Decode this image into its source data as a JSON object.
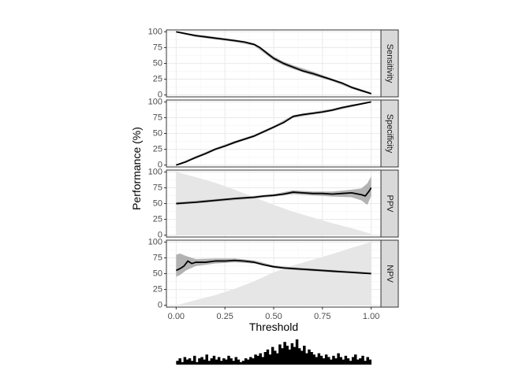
{
  "chart_data": {
    "type": "line",
    "xlabel": "Threshold",
    "ylabel": "Performance (%)",
    "xlim": [
      -0.05,
      1.05
    ],
    "ylim": [
      -3,
      103
    ],
    "x_ticks": [
      0,
      0.25,
      0.5,
      0.75,
      1
    ],
    "x_tick_labels": [
      "0.00",
      "0.25",
      "0.50",
      "0.75",
      "1.00"
    ],
    "y_ticks": [
      0,
      25,
      50,
      75,
      100
    ],
    "y_tick_labels": [
      "0",
      "25",
      "50",
      "75",
      "100"
    ],
    "grid": true,
    "colors": {
      "panel_bg": "#ffffff",
      "grid_major": "#ebebeb",
      "grid_minor": "#f5f5f5",
      "border": "#333333",
      "strip_bg": "#d9d9d9",
      "line": "#000000",
      "ci_band": "#999999",
      "area_fill": "#e6e6e6"
    },
    "panels": [
      {
        "name": "Sensitivity",
        "line": [
          [
            0,
            100
          ],
          [
            0.05,
            97
          ],
          [
            0.1,
            94
          ],
          [
            0.15,
            92
          ],
          [
            0.2,
            90
          ],
          [
            0.25,
            88
          ],
          [
            0.3,
            86
          ],
          [
            0.35,
            84
          ],
          [
            0.4,
            80
          ],
          [
            0.43,
            75
          ],
          [
            0.47,
            65
          ],
          [
            0.5,
            58
          ],
          [
            0.55,
            50
          ],
          [
            0.6,
            44
          ],
          [
            0.65,
            38
          ],
          [
            0.7,
            34
          ],
          [
            0.75,
            29
          ],
          [
            0.8,
            24
          ],
          [
            0.85,
            19
          ],
          [
            0.9,
            12
          ],
          [
            0.95,
            7
          ],
          [
            1,
            2
          ]
        ],
        "ci_lower": [
          [
            0,
            99
          ],
          [
            0.1,
            92
          ],
          [
            0.2,
            88
          ],
          [
            0.3,
            84
          ],
          [
            0.4,
            78
          ],
          [
            0.47,
            62
          ],
          [
            0.5,
            55
          ],
          [
            0.55,
            47
          ],
          [
            0.6,
            41
          ],
          [
            0.7,
            31
          ],
          [
            0.8,
            22
          ],
          [
            0.9,
            10
          ],
          [
            0.95,
            5
          ],
          [
            1,
            1
          ]
        ],
        "ci_upper": [
          [
            0,
            100
          ],
          [
            0.1,
            96
          ],
          [
            0.2,
            92
          ],
          [
            0.3,
            88
          ],
          [
            0.4,
            82
          ],
          [
            0.47,
            68
          ],
          [
            0.5,
            61
          ],
          [
            0.55,
            53
          ],
          [
            0.6,
            47
          ],
          [
            0.7,
            37
          ],
          [
            0.8,
            26
          ],
          [
            0.9,
            14
          ],
          [
            0.95,
            9
          ],
          [
            1,
            4
          ]
        ]
      },
      {
        "name": "Specificity",
        "line": [
          [
            0,
            0
          ],
          [
            0.05,
            5
          ],
          [
            0.1,
            12
          ],
          [
            0.15,
            18
          ],
          [
            0.2,
            25
          ],
          [
            0.25,
            30
          ],
          [
            0.3,
            36
          ],
          [
            0.35,
            41
          ],
          [
            0.4,
            46
          ],
          [
            0.45,
            53
          ],
          [
            0.5,
            60
          ],
          [
            0.55,
            67
          ],
          [
            0.6,
            77
          ],
          [
            0.65,
            80
          ],
          [
            0.7,
            82
          ],
          [
            0.75,
            84
          ],
          [
            0.8,
            87
          ],
          [
            0.85,
            91
          ],
          [
            0.9,
            94
          ],
          [
            0.95,
            97
          ],
          [
            1,
            100
          ]
        ],
        "ci_lower": [
          [
            0,
            0
          ],
          [
            0.1,
            10
          ],
          [
            0.2,
            23
          ],
          [
            0.3,
            34
          ],
          [
            0.4,
            44
          ],
          [
            0.5,
            58
          ],
          [
            0.6,
            75
          ],
          [
            0.7,
            80
          ],
          [
            0.8,
            85
          ],
          [
            0.9,
            92
          ],
          [
            1,
            99
          ]
        ],
        "ci_upper": [
          [
            0,
            1
          ],
          [
            0.1,
            14
          ],
          [
            0.2,
            27
          ],
          [
            0.3,
            38
          ],
          [
            0.4,
            48
          ],
          [
            0.5,
            62
          ],
          [
            0.6,
            79
          ],
          [
            0.7,
            84
          ],
          [
            0.8,
            89
          ],
          [
            0.9,
            96
          ],
          [
            1,
            100
          ]
        ]
      },
      {
        "name": "PPV",
        "area": [
          [
            0,
            100
          ],
          [
            0.1,
            92
          ],
          [
            0.2,
            83
          ],
          [
            0.3,
            72
          ],
          [
            0.4,
            60
          ],
          [
            0.5,
            48
          ],
          [
            0.6,
            37
          ],
          [
            0.7,
            28
          ],
          [
            0.8,
            19
          ],
          [
            0.9,
            11
          ],
          [
            1,
            2
          ]
        ],
        "line": [
          [
            0,
            50
          ],
          [
            0.1,
            52
          ],
          [
            0.2,
            55
          ],
          [
            0.3,
            58
          ],
          [
            0.4,
            60
          ],
          [
            0.45,
            62
          ],
          [
            0.5,
            63
          ],
          [
            0.55,
            65
          ],
          [
            0.6,
            68
          ],
          [
            0.65,
            67
          ],
          [
            0.7,
            66
          ],
          [
            0.75,
            66
          ],
          [
            0.8,
            65
          ],
          [
            0.85,
            66
          ],
          [
            0.9,
            67
          ],
          [
            0.95,
            64
          ],
          [
            0.97,
            62
          ],
          [
            0.99,
            70
          ],
          [
            1,
            75
          ]
        ],
        "ci_lower": [
          [
            0,
            48
          ],
          [
            0.2,
            53
          ],
          [
            0.4,
            58
          ],
          [
            0.5,
            61
          ],
          [
            0.6,
            65
          ],
          [
            0.7,
            63
          ],
          [
            0.8,
            61
          ],
          [
            0.9,
            60
          ],
          [
            0.95,
            55
          ],
          [
            0.98,
            48
          ],
          [
            1,
            62
          ]
        ],
        "ci_upper": [
          [
            0,
            52
          ],
          [
            0.2,
            57
          ],
          [
            0.4,
            62
          ],
          [
            0.5,
            65
          ],
          [
            0.6,
            71
          ],
          [
            0.7,
            69
          ],
          [
            0.8,
            69
          ],
          [
            0.9,
            72
          ],
          [
            0.95,
            74
          ],
          [
            0.98,
            82
          ],
          [
            1,
            93
          ]
        ]
      },
      {
        "name": "NPV",
        "area": [
          [
            0,
            0
          ],
          [
            0.1,
            8
          ],
          [
            0.2,
            16
          ],
          [
            0.3,
            26
          ],
          [
            0.4,
            38
          ],
          [
            0.5,
            52
          ],
          [
            0.6,
            63
          ],
          [
            0.7,
            72
          ],
          [
            0.8,
            81
          ],
          [
            0.9,
            91
          ],
          [
            1,
            100
          ]
        ],
        "line": [
          [
            0,
            55
          ],
          [
            0.02,
            58
          ],
          [
            0.04,
            62
          ],
          [
            0.06,
            70
          ],
          [
            0.08,
            66
          ],
          [
            0.1,
            68
          ],
          [
            0.15,
            68
          ],
          [
            0.2,
            70
          ],
          [
            0.25,
            70
          ],
          [
            0.3,
            71
          ],
          [
            0.35,
            70
          ],
          [
            0.4,
            68
          ],
          [
            0.45,
            64
          ],
          [
            0.5,
            61
          ],
          [
            0.55,
            59
          ],
          [
            0.6,
            58
          ],
          [
            0.65,
            57
          ],
          [
            0.7,
            56
          ],
          [
            0.75,
            55
          ],
          [
            0.8,
            54
          ],
          [
            0.85,
            53
          ],
          [
            0.9,
            52
          ],
          [
            0.95,
            51
          ],
          [
            1,
            50
          ]
        ],
        "ci_lower": [
          [
            0,
            45
          ],
          [
            0.02,
            48
          ],
          [
            0.05,
            55
          ],
          [
            0.1,
            62
          ],
          [
            0.2,
            66
          ],
          [
            0.3,
            68
          ],
          [
            0.4,
            66
          ],
          [
            0.5,
            59
          ],
          [
            0.6,
            56
          ],
          [
            0.8,
            52
          ],
          [
            1,
            49
          ]
        ],
        "ci_upper": [
          [
            0,
            80
          ],
          [
            0.02,
            82
          ],
          [
            0.05,
            78
          ],
          [
            0.1,
            73
          ],
          [
            0.2,
            74
          ],
          [
            0.3,
            74
          ],
          [
            0.4,
            71
          ],
          [
            0.5,
            63
          ],
          [
            0.6,
            60
          ],
          [
            0.8,
            56
          ],
          [
            1,
            52
          ]
        ]
      }
    ],
    "histogram": [
      3,
      5,
      2,
      6,
      4,
      5,
      3,
      7,
      2,
      5,
      6,
      4,
      8,
      3,
      5,
      7,
      4,
      6,
      3,
      5,
      4,
      7,
      5,
      3,
      6,
      4,
      2,
      3,
      5,
      4,
      6,
      5,
      8,
      7,
      9,
      6,
      10,
      12,
      8,
      14,
      11,
      9,
      16,
      13,
      18,
      15,
      12,
      17,
      14,
      20,
      13,
      11,
      15,
      9,
      12,
      10,
      8,
      6,
      9,
      7,
      5,
      8,
      6,
      4,
      7,
      5,
      9,
      6,
      4,
      7,
      5,
      3,
      6,
      8,
      4,
      5,
      7,
      3,
      6,
      4
    ]
  }
}
